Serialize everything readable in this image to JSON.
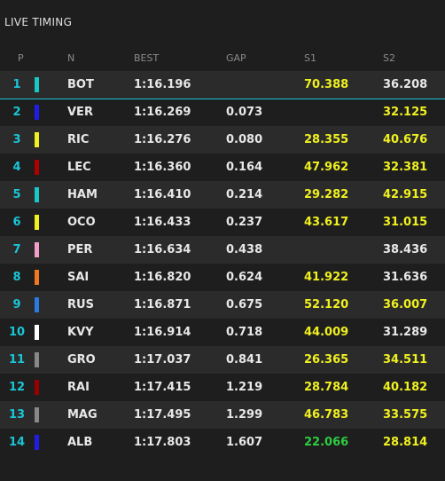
{
  "header": {
    "title": "LIVE TIMING"
  },
  "table": {
    "columns": [
      "P",
      "N",
      "BEST",
      "GAP",
      "S1",
      "S2"
    ],
    "current_row_color": "#19c6d6",
    "rows": [
      {
        "pos": 1,
        "team_color": "#19c6c6",
        "driver": "BOT",
        "best": "1:16.196",
        "gap": null,
        "s1": "70.388",
        "s1_color": "#f0f020",
        "s2": "36.208",
        "s2_color": "#e8e8e8"
      },
      {
        "pos": 2,
        "team_color": "#1e1ee8",
        "driver": "VER",
        "best": "1:16.269",
        "gap": "0.073",
        "s1": null,
        "s1_color": null,
        "s2": "32.125",
        "s2_color": "#f0f020"
      },
      {
        "pos": 3,
        "team_color": "#f0f020",
        "driver": "RIC",
        "best": "1:16.276",
        "gap": "0.080",
        "s1": "28.355",
        "s1_color": "#f0f020",
        "s2": "40.676",
        "s2_color": "#f0f020"
      },
      {
        "pos": 4,
        "team_color": "#b00000",
        "driver": "LEC",
        "best": "1:16.360",
        "gap": "0.164",
        "s1": "47.962",
        "s1_color": "#f0f020",
        "s2": "32.381",
        "s2_color": "#f0f020"
      },
      {
        "pos": 5,
        "team_color": "#19c6c6",
        "driver": "HAM",
        "best": "1:16.410",
        "gap": "0.214",
        "s1": "29.282",
        "s1_color": "#f0f020",
        "s2": "42.915",
        "s2_color": "#f0f020"
      },
      {
        "pos": 6,
        "team_color": "#f0f020",
        "driver": "OCO",
        "best": "1:16.433",
        "gap": "0.237",
        "s1": "43.617",
        "s1_color": "#f0f020",
        "s2": "31.015",
        "s2_color": "#f0f020"
      },
      {
        "pos": 7,
        "team_color": "#f0a0c8",
        "driver": "PER",
        "best": "1:16.634",
        "gap": "0.438",
        "s1": null,
        "s1_color": null,
        "s2": "38.436",
        "s2_color": "#e8e8e8"
      },
      {
        "pos": 8,
        "team_color": "#f07820",
        "driver": "SAI",
        "best": "1:16.820",
        "gap": "0.624",
        "s1": "41.922",
        "s1_color": "#f0f020",
        "s2": "31.636",
        "s2_color": "#e8e8e8"
      },
      {
        "pos": 9,
        "team_color": "#2a7ae0",
        "driver": "RUS",
        "best": "1:16.871",
        "gap": "0.675",
        "s1": "52.120",
        "s1_color": "#f0f020",
        "s2": "36.007",
        "s2_color": "#f0f020"
      },
      {
        "pos": 10,
        "team_color": "#ffffff",
        "driver": "KVY",
        "best": "1:16.914",
        "gap": "0.718",
        "s1": "44.009",
        "s1_color": "#f0f020",
        "s2": "31.289",
        "s2_color": "#e8e8e8"
      },
      {
        "pos": 11,
        "team_color": "#888888",
        "driver": "GRO",
        "best": "1:17.037",
        "gap": "0.841",
        "s1": "26.365",
        "s1_color": "#f0f020",
        "s2": "34.511",
        "s2_color": "#f0f020"
      },
      {
        "pos": 12,
        "team_color": "#9b0000",
        "driver": "RAI",
        "best": "1:17.415",
        "gap": "1.219",
        "s1": "28.784",
        "s1_color": "#f0f020",
        "s2": "40.182",
        "s2_color": "#f0f020"
      },
      {
        "pos": 13,
        "team_color": "#888888",
        "driver": "MAG",
        "best": "1:17.495",
        "gap": "1.299",
        "s1": "46.783",
        "s1_color": "#f0f020",
        "s2": "33.575",
        "s2_color": "#f0f020"
      },
      {
        "pos": 14,
        "team_color": "#1e1ee8",
        "driver": "ALB",
        "best": "1:17.803",
        "gap": "1.607",
        "s1": "22.066",
        "s1_color": "#2ecc40",
        "s2": "28.814",
        "s2_color": "#f0f020"
      }
    ]
  }
}
